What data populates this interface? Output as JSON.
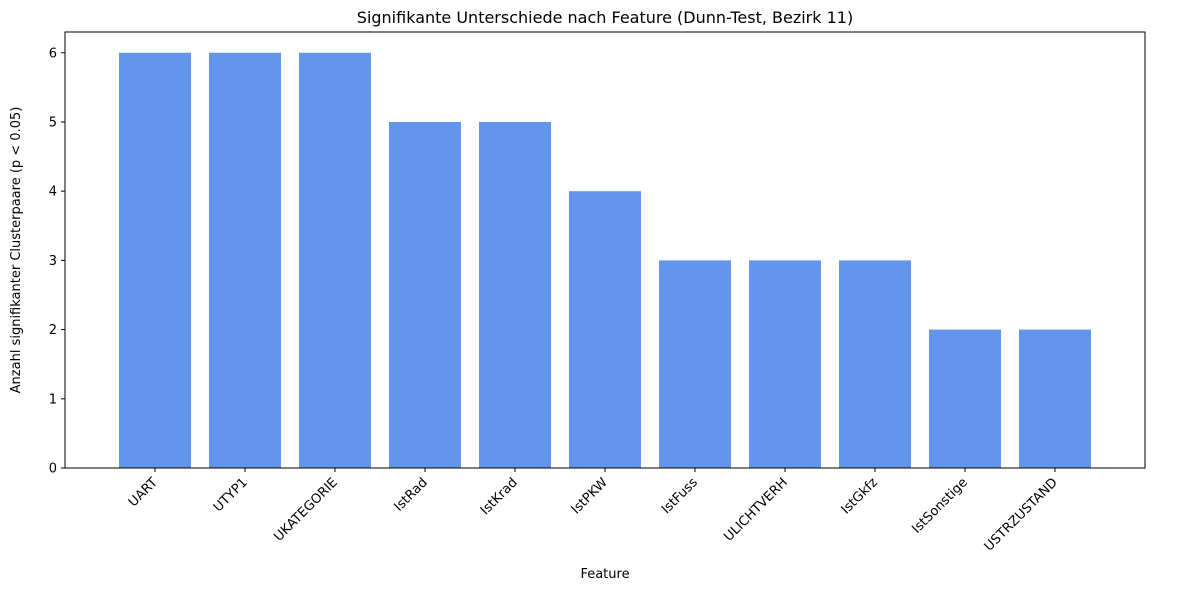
{
  "chart_data": {
    "type": "bar",
    "title": "Signifikante Unterschiede nach Feature (Dunn-Test, Bezirk 11)",
    "xlabel": "Feature",
    "ylabel": "Anzahl signifikanter Clusterpaare (p < 0.05)",
    "categories": [
      "UART",
      "UTYP1",
      "UKATEGORIE",
      "IstRad",
      "IstKrad",
      "IstPKW",
      "IstFuss",
      "ULICHTVERH",
      "IstGkfz",
      "IstSonstige",
      "USTRZUSTAND"
    ],
    "values": [
      6,
      6,
      6,
      5,
      5,
      4,
      3,
      3,
      3,
      2,
      2
    ],
    "ylim": [
      0,
      6.3
    ],
    "yticks": [
      "0",
      "1",
      "2",
      "3",
      "4",
      "5",
      "6"
    ],
    "bar_color": "#6495ED",
    "grid": false,
    "legend": "none"
  }
}
